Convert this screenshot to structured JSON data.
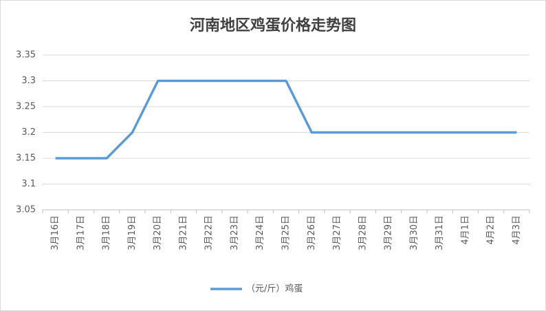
{
  "chart_data": {
    "type": "line",
    "title": "河南地区鸡蛋价格走势图",
    "categories": [
      "3月16日",
      "3月17日",
      "3月18日",
      "3月19日",
      "3月20日",
      "3月21日",
      "3月22日",
      "3月23日",
      "3月24日",
      "3月25日",
      "3月26日",
      "3月27日",
      "3月28日",
      "3月29日",
      "3月30日",
      "3月31日",
      "4月1日",
      "4月2日",
      "4月3日"
    ],
    "series": [
      {
        "name": "（元/斤）鸡蛋",
        "color": "#5b9bd5",
        "values": [
          3.15,
          3.15,
          3.15,
          3.2,
          3.3,
          3.3,
          3.3,
          3.3,
          3.3,
          3.3,
          3.2,
          3.2,
          3.2,
          3.2,
          3.2,
          3.2,
          3.2,
          3.2,
          3.2
        ]
      }
    ],
    "ylim": [
      3.05,
      3.35
    ],
    "yticks": [
      3.05,
      3.1,
      3.15,
      3.2,
      3.25,
      3.3,
      3.35
    ],
    "grid": true,
    "legend": "bottom"
  }
}
